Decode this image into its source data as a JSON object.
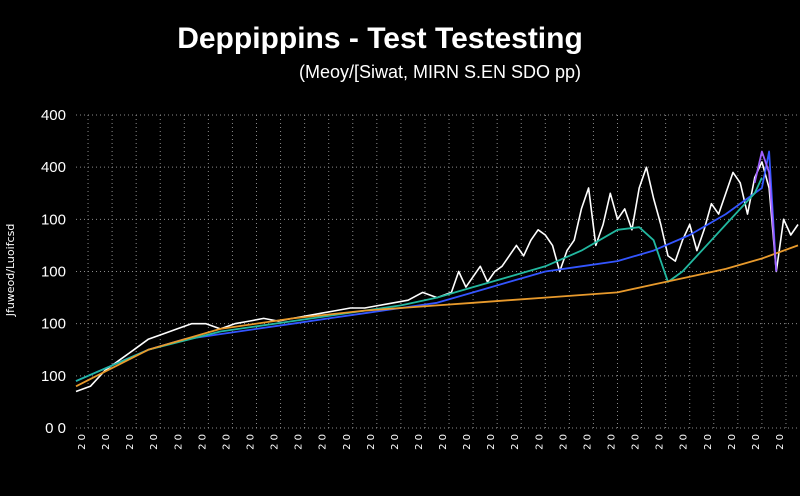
{
  "chart_data": {
    "type": "line",
    "title": "Deppippins - Test Testesting",
    "subtitle": "(Meoy/[Siwat, MIRN S.EN SDO pp)",
    "ylabel": "Jfuweod/Luoifcsd",
    "xlabel": "",
    "y_tick_labels": [
      "0 0",
      "100",
      "100",
      "100",
      "100",
      "400",
      "400"
    ],
    "x_tick_labels": [
      "2 0",
      "2 0",
      "2 0",
      "2 0",
      "2 0",
      "2 0",
      "2 0",
      "2 0",
      "2 0",
      "2 0",
      "2 0",
      "2 0",
      "2 0",
      "2 0",
      "2 0",
      "2 0",
      "2 0",
      "2 0",
      "2 0",
      "2 0",
      "2 0",
      "2 0",
      "2 0",
      "2 0",
      "2 0",
      "2 0",
      "2 0",
      "2 0",
      "2 0",
      "2 0"
    ],
    "grid": true,
    "legend": "none",
    "ylim": [
      0,
      6
    ],
    "xlim": [
      0,
      100
    ],
    "series": [
      {
        "color": "#ffffff",
        "x": [
          0,
          2,
          4,
          6,
          8,
          10,
          12,
          14,
          16,
          18,
          20,
          22,
          24,
          26,
          28,
          30,
          32,
          34,
          36,
          38,
          40,
          42,
          44,
          46,
          48,
          50,
          52,
          53,
          54,
          55,
          56,
          57,
          58,
          59,
          60,
          61,
          62,
          63,
          64,
          65,
          66,
          67,
          68,
          69,
          70,
          71,
          72,
          73,
          74,
          75,
          76,
          77,
          78,
          79,
          80,
          81,
          82,
          83,
          84,
          85,
          86,
          87,
          88,
          89,
          90,
          91,
          92,
          93,
          94,
          95,
          96,
          97,
          98,
          99,
          100
        ],
        "y": [
          0.7,
          0.8,
          1.1,
          1.3,
          1.5,
          1.7,
          1.8,
          1.9,
          2.0,
          2.0,
          1.9,
          2.0,
          2.05,
          2.1,
          2.05,
          2.1,
          2.15,
          2.2,
          2.25,
          2.3,
          2.3,
          2.35,
          2.4,
          2.45,
          2.6,
          2.5,
          2.6,
          3.0,
          2.7,
          2.9,
          3.1,
          2.8,
          3.0,
          3.1,
          3.3,
          3.5,
          3.3,
          3.6,
          3.8,
          3.7,
          3.5,
          3.0,
          3.4,
          3.6,
          4.2,
          4.6,
          3.5,
          3.9,
          4.5,
          4.0,
          4.2,
          3.8,
          4.6,
          5.0,
          4.4,
          3.9,
          3.3,
          3.2,
          3.6,
          3.9,
          3.4,
          3.8,
          4.3,
          4.1,
          4.5,
          4.9,
          4.7,
          4.1,
          4.8,
          5.1,
          4.6,
          3.0,
          4.0,
          3.7,
          3.9
        ]
      },
      {
        "color": "#3355ff",
        "x": [
          0,
          5,
          10,
          15,
          20,
          25,
          30,
          35,
          40,
          45,
          50,
          55,
          60,
          65,
          70,
          75,
          80,
          85,
          90,
          95,
          96,
          97
        ],
        "y": [
          0.9,
          1.2,
          1.5,
          1.7,
          1.8,
          1.9,
          2.0,
          2.1,
          2.2,
          2.3,
          2.4,
          2.6,
          2.8,
          3.0,
          3.1,
          3.2,
          3.4,
          3.7,
          4.1,
          4.6,
          5.3,
          3.0
        ]
      },
      {
        "color": "#22b8a0",
        "x": [
          0,
          10,
          20,
          30,
          40,
          45,
          50,
          55,
          60,
          65,
          70,
          75,
          78,
          80,
          82,
          84,
          86,
          88,
          90,
          92,
          94,
          95
        ],
        "y": [
          0.9,
          1.5,
          1.85,
          2.05,
          2.25,
          2.35,
          2.5,
          2.7,
          2.9,
          3.1,
          3.4,
          3.8,
          3.85,
          3.6,
          2.8,
          3.0,
          3.3,
          3.6,
          3.9,
          4.2,
          4.5,
          4.8
        ]
      },
      {
        "color": "#e89a2c",
        "x": [
          0,
          10,
          20,
          30,
          40,
          50,
          55,
          60,
          65,
          70,
          75,
          80,
          85,
          90,
          95,
          100
        ],
        "y": [
          0.8,
          1.5,
          1.9,
          2.1,
          2.25,
          2.35,
          2.4,
          2.45,
          2.5,
          2.55,
          2.6,
          2.75,
          2.9,
          3.05,
          3.25,
          3.5
        ]
      },
      {
        "color": "#a060ff",
        "x": [
          94,
          95,
          96,
          97
        ],
        "y": [
          4.7,
          5.3,
          4.9,
          3.0
        ]
      }
    ]
  }
}
